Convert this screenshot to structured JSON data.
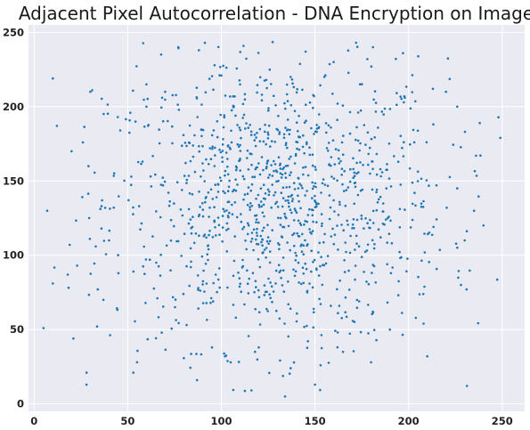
{
  "chart_data": {
    "type": "scatter",
    "title": "Adjacent Pixel Autocorrelation - DNA Encryption on Image",
    "xlabel": "",
    "ylabel": "",
    "xlim": [
      -3,
      262
    ],
    "ylim": [
      -5,
      255
    ],
    "xticks": [
      0,
      50,
      100,
      150,
      200,
      250
    ],
    "yticks": [
      0,
      50,
      100,
      150,
      200,
      250
    ],
    "grid": true,
    "colors": {
      "background": "#eaeaf2",
      "grid": "#ffffff",
      "marker": "#1f77b4"
    },
    "point_pattern": {
      "center": [
        130,
        135
      ],
      "spread": [
        45,
        48
      ],
      "count": 1150,
      "x_range": [
        5,
        250
      ],
      "y_range": [
        5,
        245
      ]
    },
    "points": [
      [
        5,
        51
      ],
      [
        7,
        130
      ],
      [
        10,
        219
      ],
      [
        10,
        81
      ],
      [
        21,
        44
      ],
      [
        28,
        21
      ],
      [
        30,
        210
      ],
      [
        31,
        211
      ],
      [
        34,
        77
      ],
      [
        37,
        70
      ],
      [
        45,
        88
      ],
      [
        53,
        21
      ],
      [
        55,
        28
      ],
      [
        87,
        16
      ],
      [
        88,
        238
      ],
      [
        77,
        240
      ],
      [
        134,
        5
      ],
      [
        137,
        24
      ],
      [
        150,
        13
      ],
      [
        153,
        26
      ],
      [
        172,
        243
      ],
      [
        178,
        232
      ],
      [
        181,
        240
      ],
      [
        197,
        236
      ],
      [
        208,
        54
      ],
      [
        210,
        32
      ],
      [
        213,
        212
      ],
      [
        220,
        210
      ],
      [
        226,
        200
      ],
      [
        228,
        80
      ],
      [
        231,
        77
      ],
      [
        236,
        167
      ],
      [
        249,
        179
      ],
      [
        137,
        220
      ],
      [
        155,
        220
      ],
      [
        160,
        230
      ],
      [
        118,
        35
      ],
      [
        100,
        221
      ],
      [
        60,
        215
      ],
      [
        46,
        184
      ],
      [
        29,
        160
      ],
      [
        40,
        110
      ],
      [
        19,
        107
      ],
      [
        23,
        93
      ],
      [
        18,
        87
      ],
      [
        20,
        170
      ],
      [
        26,
        176
      ],
      [
        36,
        133
      ],
      [
        102,
        32
      ],
      [
        105,
        28
      ],
      [
        95,
        38
      ],
      [
        120,
        38
      ],
      [
        165,
        35
      ],
      [
        180,
        28
      ],
      [
        190,
        50
      ],
      [
        230,
        110
      ],
      [
        235,
        130
      ],
      [
        238,
        189
      ],
      [
        240,
        120
      ],
      [
        226,
        145
      ],
      [
        60,
        200
      ],
      [
        70,
        210
      ],
      [
        110,
        215
      ],
      [
        145,
        237
      ]
    ]
  }
}
